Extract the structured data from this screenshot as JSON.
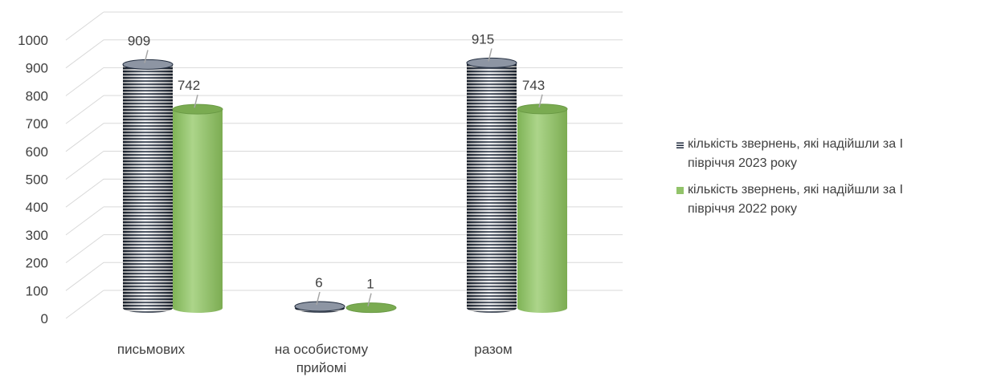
{
  "chart_data": {
    "type": "bar",
    "style": "3d-cylinder",
    "categories": [
      "письмових",
      "на особистому прийомі",
      "разом"
    ],
    "category_lines": [
      [
        "письмових"
      ],
      [
        "на особистому",
        "прийомі"
      ],
      [
        "разом"
      ]
    ],
    "series": [
      {
        "name": "кількість звернень, які надійшли за І півріччя 2023 року",
        "values": [
          909,
          6,
          915
        ],
        "color": "#1f2a3c",
        "pattern": "horizontal-stripes"
      },
      {
        "name": "кількість звернень, які надійшли за І півріччя 2022 року",
        "values": [
          742,
          1,
          743
        ],
        "color": "#92c36a",
        "pattern": "solid"
      }
    ],
    "y_ticks": [
      0,
      100,
      200,
      300,
      400,
      500,
      600,
      700,
      800,
      900,
      1000
    ],
    "ylim": [
      0,
      1000
    ],
    "grid": true,
    "legend_position": "right"
  },
  "legend": {
    "items": [
      {
        "lines": [
          "кількість звернень, які надійшли за І",
          "півріччя 2023 року"
        ]
      },
      {
        "lines": [
          "кількість звернень, які надійшли за І",
          "півріччя 2022 року"
        ]
      }
    ]
  }
}
